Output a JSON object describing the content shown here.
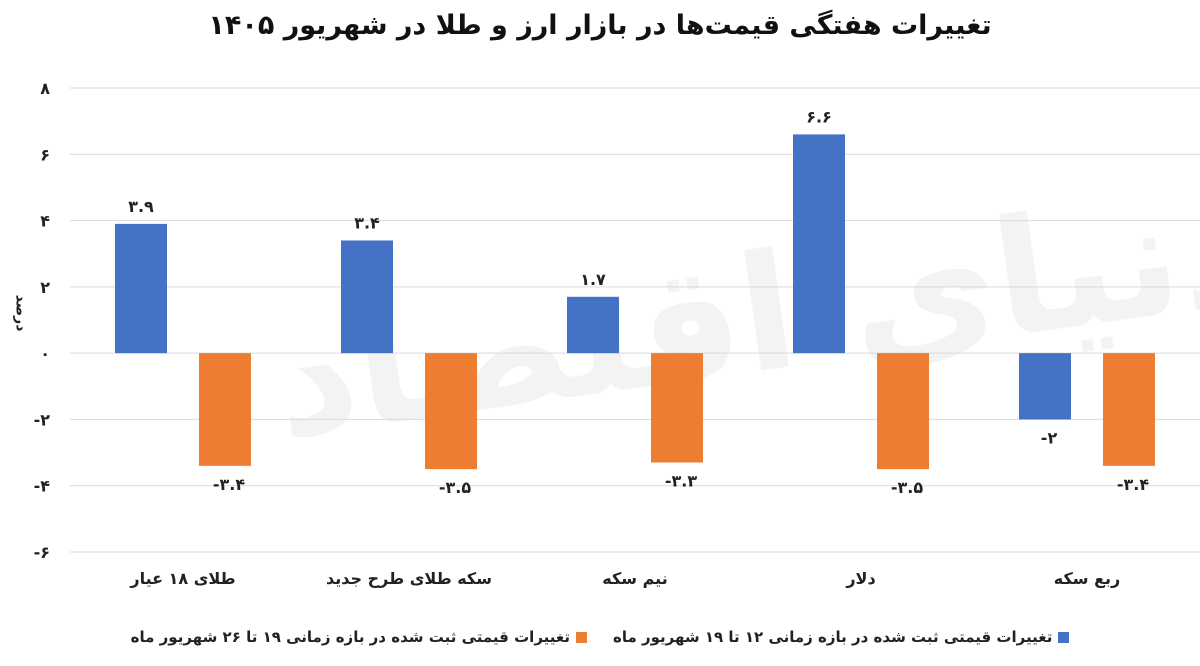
{
  "chart_data": {
    "type": "bar",
    "title": "تغییرات هفتگی قیمت‌ها در بازار ارز و طلا در شهریور ۱۴۰۵",
    "ylabel": "درصد",
    "ylim": [
      -6,
      8
    ],
    "yticks": [
      {
        "value": 8,
        "label": "۸"
      },
      {
        "value": 6,
        "label": "۶"
      },
      {
        "value": 4,
        "label": "۴"
      },
      {
        "value": 2,
        "label": "۲"
      },
      {
        "value": 0,
        "label": "۰"
      },
      {
        "value": -2,
        "label": "-۲"
      },
      {
        "value": -4,
        "label": "-۴"
      },
      {
        "value": -6,
        "label": "-۶"
      }
    ],
    "categories": [
      "طلای ۱۸ عیار",
      "سکه طلای طرح جدید",
      "نیم سکه",
      "دلار",
      "ربع سکه"
    ],
    "series": [
      {
        "name": "تغییرات قیمتی ثبت شده در بازه زمانی ۱۲ تا ۱۹ شهریور ماه",
        "color": "#4472C4",
        "values": [
          3.9,
          3.4,
          1.7,
          6.6,
          -2
        ],
        "labels": [
          "۳.۹",
          "۳.۴",
          "۱.۷",
          "۶.۶",
          "-۲"
        ]
      },
      {
        "name": "تغییرات قیمتی ثبت شده در بازه زمانی ۱۹ تا ۲۶ شهریور ماه",
        "color": "#ED7D31",
        "values": [
          -3.4,
          -3.5,
          -3.3,
          -3.5,
          -3.4
        ],
        "labels": [
          "-۳.۴",
          "-۳.۵",
          "-۳.۳",
          "-۳.۵",
          "-۳.۴"
        ]
      }
    ],
    "grid": true,
    "legend_position": "bottom"
  },
  "watermark": "دنیای اقتصاد"
}
